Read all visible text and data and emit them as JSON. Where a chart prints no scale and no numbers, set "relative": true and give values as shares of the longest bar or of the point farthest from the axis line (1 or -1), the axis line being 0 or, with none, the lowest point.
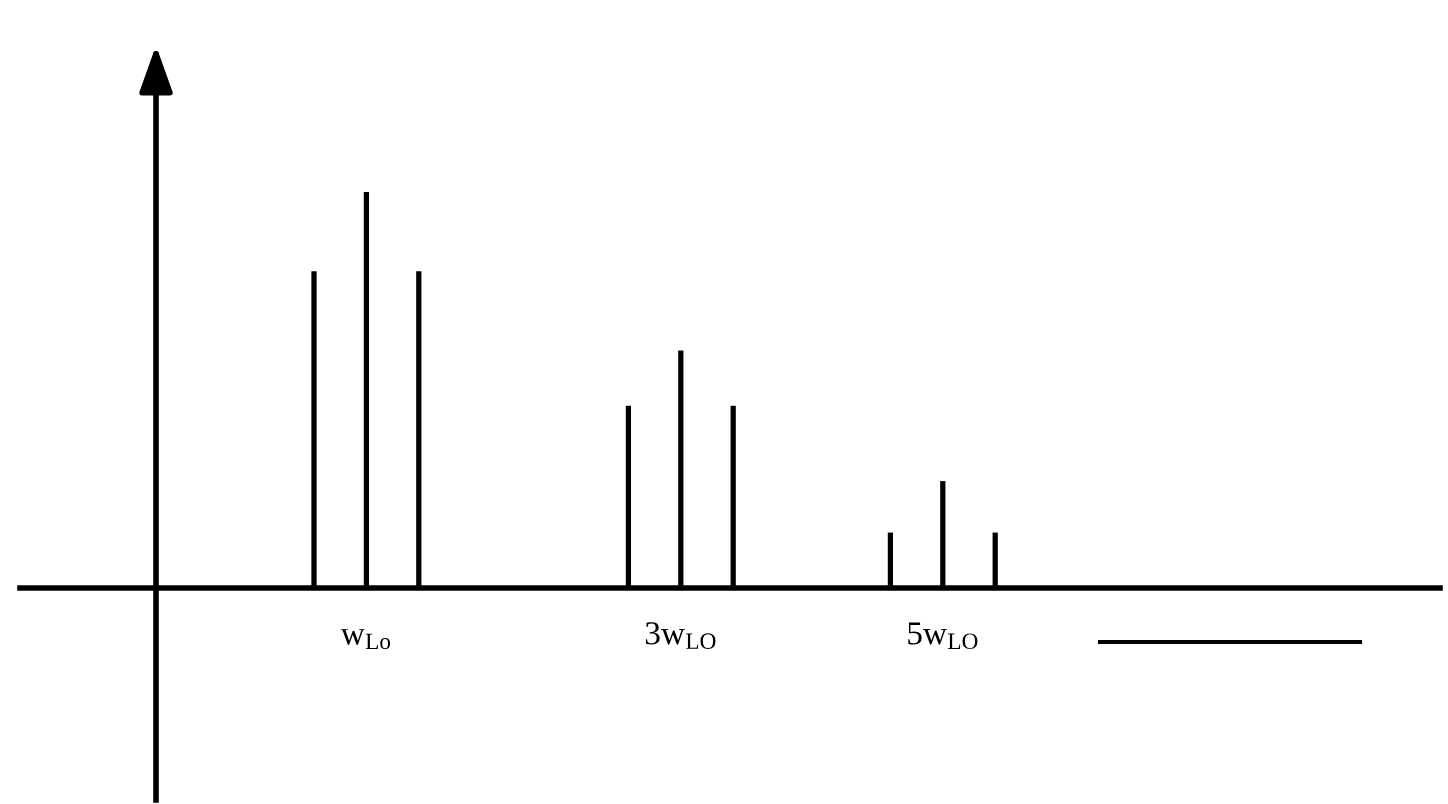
{
  "chart_data": {
    "type": "bar",
    "relative": true,
    "color": "#000000",
    "categories": [
      null,
      "w$_{Lo}$",
      null,
      null,
      null,
      null,
      null,
      "3w$_{LO}$",
      null,
      null,
      null,
      null,
      "5w$_{LO}$",
      null
    ],
    "values": [
      0.8,
      1,
      0.8,
      null,
      null,
      null,
      0.46,
      0.6,
      0.46,
      null,
      null,
      0.14,
      0.27,
      0.14
    ],
    "grid": false,
    "legend": false
  }
}
